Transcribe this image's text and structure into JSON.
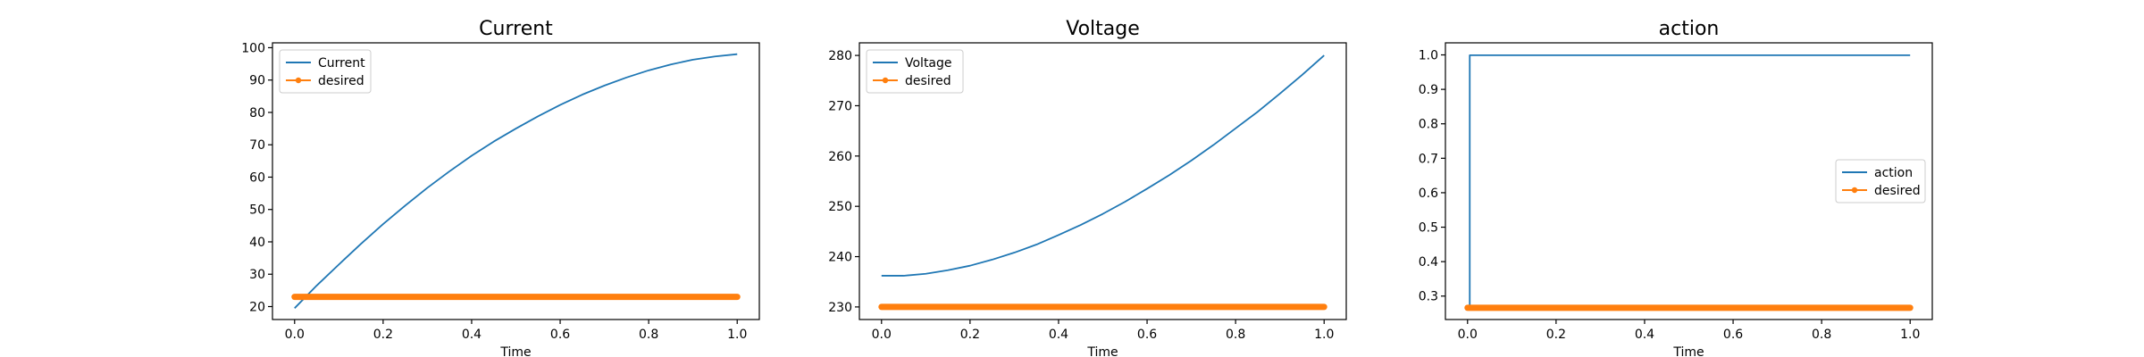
{
  "colors": {
    "series1": "#1f77b4",
    "desired": "#ff7f0e"
  },
  "chart_data": [
    {
      "type": "line",
      "title": "Current",
      "xlabel": "Time",
      "ylabel": "",
      "xlim": [
        -0.05,
        1.05
      ],
      "ylim": [
        16.0,
        101.5
      ],
      "xticks": [
        0.0,
        0.2,
        0.4,
        0.6,
        0.8,
        1.0
      ],
      "xtick_labels": [
        "0.0",
        "0.2",
        "0.4",
        "0.6",
        "0.8",
        "1.0"
      ],
      "yticks": [
        20,
        30,
        40,
        50,
        60,
        70,
        80,
        90,
        100
      ],
      "ytick_labels": [
        "20",
        "30",
        "40",
        "50",
        "60",
        "70",
        "80",
        "90",
        "100"
      ],
      "legend_loc": "top-left",
      "series": [
        {
          "name": "Current",
          "style": "line",
          "x": [
            0.0,
            0.05,
            0.1,
            0.15,
            0.2,
            0.25,
            0.3,
            0.35,
            0.4,
            0.45,
            0.5,
            0.55,
            0.6,
            0.65,
            0.7,
            0.75,
            0.8,
            0.85,
            0.9,
            0.95,
            1.0
          ],
          "y": [
            19.5,
            26.5,
            33.0,
            39.4,
            45.5,
            51.2,
            56.7,
            61.8,
            66.6,
            71.0,
            75.0,
            78.8,
            82.3,
            85.5,
            88.3,
            90.8,
            93.0,
            94.8,
            96.3,
            97.3,
            98.0
          ]
        },
        {
          "name": "desired",
          "style": "line-dot",
          "x": [
            0.0,
            1.0
          ],
          "y": [
            23.0,
            23.0
          ]
        }
      ]
    },
    {
      "type": "line",
      "title": "Voltage",
      "xlabel": "Time",
      "ylabel": "",
      "xlim": [
        -0.05,
        1.05
      ],
      "ylim": [
        227.5,
        282.5
      ],
      "xticks": [
        0.0,
        0.2,
        0.4,
        0.6,
        0.8,
        1.0
      ],
      "xtick_labels": [
        "0.0",
        "0.2",
        "0.4",
        "0.6",
        "0.8",
        "1.0"
      ],
      "yticks": [
        230,
        240,
        250,
        260,
        270,
        280
      ],
      "ytick_labels": [
        "230",
        "240",
        "250",
        "260",
        "270",
        "280"
      ],
      "legend_loc": "top-left",
      "series": [
        {
          "name": "Voltage",
          "style": "line",
          "x": [
            0.0,
            0.05,
            0.1,
            0.15,
            0.2,
            0.25,
            0.3,
            0.35,
            0.4,
            0.45,
            0.5,
            0.55,
            0.6,
            0.65,
            0.7,
            0.75,
            0.8,
            0.85,
            0.9,
            0.95,
            1.0
          ],
          "y": [
            236.2,
            236.2,
            236.6,
            237.3,
            238.2,
            239.4,
            240.8,
            242.4,
            244.3,
            246.3,
            248.5,
            250.9,
            253.5,
            256.2,
            259.1,
            262.2,
            265.5,
            268.8,
            272.4,
            276.1,
            280.0
          ]
        },
        {
          "name": "desired",
          "style": "line-dot",
          "x": [
            0.0,
            1.0
          ],
          "y": [
            230.0,
            230.0
          ]
        }
      ]
    },
    {
      "type": "line",
      "title": "action",
      "xlabel": "Time",
      "ylabel": "",
      "xlim": [
        -0.05,
        1.05
      ],
      "ylim": [
        0.232,
        1.035
      ],
      "xticks": [
        0.0,
        0.2,
        0.4,
        0.6,
        0.8,
        1.0
      ],
      "xtick_labels": [
        "0.0",
        "0.2",
        "0.4",
        "0.6",
        "0.8",
        "1.0"
      ],
      "yticks": [
        0.3,
        0.4,
        0.5,
        0.6,
        0.7,
        0.8,
        0.9,
        1.0
      ],
      "ytick_labels": [
        "0.3",
        "0.4",
        "0.5",
        "0.6",
        "0.7",
        "0.8",
        "0.9",
        "1.0"
      ],
      "legend_loc": "center-right",
      "series": [
        {
          "name": "action",
          "style": "line",
          "x": [
            0.0,
            0.005,
            0.005,
            1.0
          ],
          "y": [
            0.266,
            0.266,
            0.999,
            0.999
          ]
        },
        {
          "name": "desired",
          "style": "line-dot",
          "x": [
            0.0,
            1.0
          ],
          "y": [
            0.266,
            0.266
          ]
        }
      ]
    }
  ]
}
